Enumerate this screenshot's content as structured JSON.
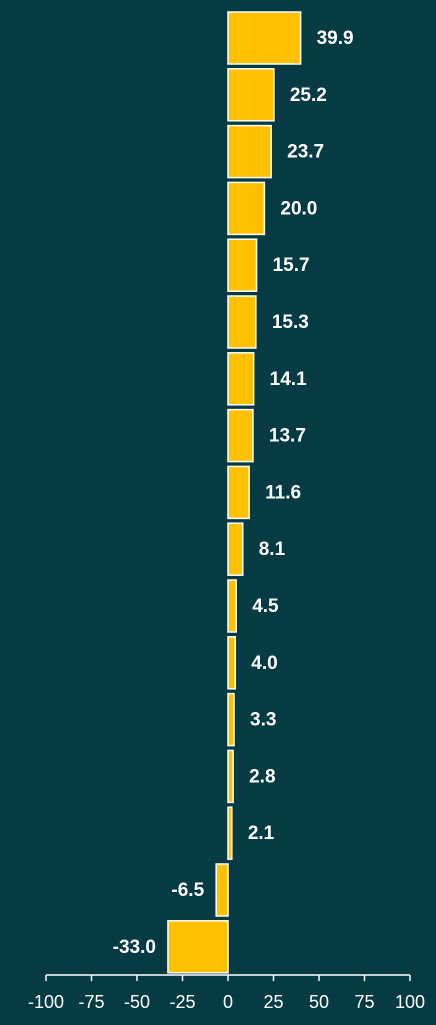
{
  "colors": {
    "background": "#073b44",
    "bar": "#ffc000",
    "bar_outline": "#ffffff",
    "text": "#ffffff"
  },
  "chart_data": {
    "type": "bar",
    "orientation": "horizontal",
    "values": [
      39.9,
      25.2,
      23.7,
      20.0,
      15.7,
      15.3,
      14.1,
      13.7,
      11.6,
      8.1,
      4.5,
      4.0,
      3.3,
      2.8,
      2.1,
      -6.5,
      -33.0
    ],
    "value_labels": [
      "39.9",
      "25.2",
      "23.7",
      "20.0",
      "15.7",
      "15.3",
      "14.1",
      "13.7",
      "11.6",
      "8.1",
      "4.5",
      "4.0",
      "3.3",
      "2.8",
      "2.1",
      "-6.5",
      "-33.0"
    ],
    "xlim": [
      -100,
      100
    ],
    "x_ticks": [
      -100,
      -75,
      -50,
      -25,
      0,
      25,
      50,
      75,
      100
    ],
    "x_tick_labels": [
      "-100",
      "-75",
      "-50",
      "-25",
      "0",
      "25",
      "50",
      "75",
      "100"
    ],
    "grid": false,
    "legend": "none",
    "data_labels": "outside-end"
  }
}
